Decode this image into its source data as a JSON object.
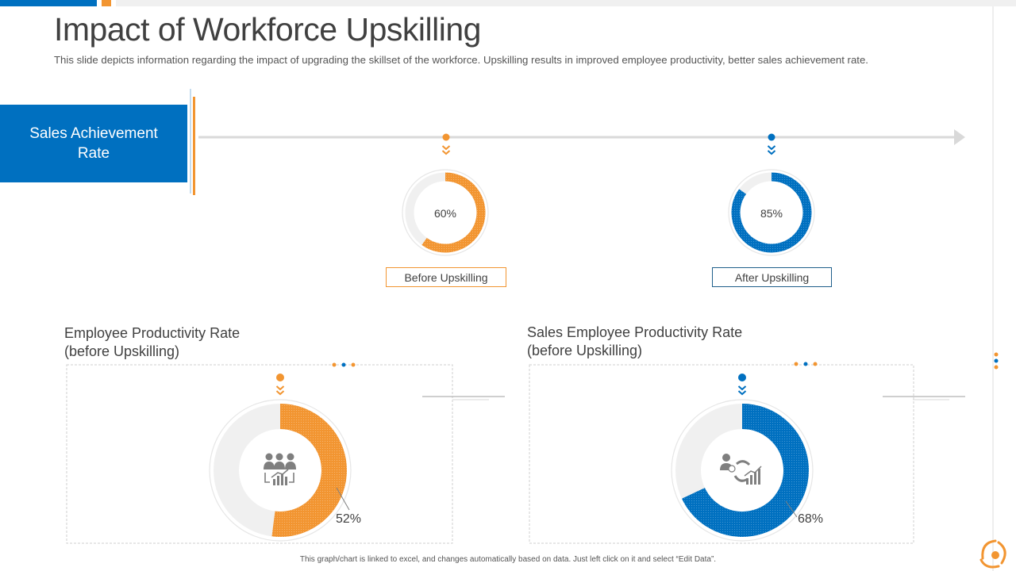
{
  "title": "Impact of Workforce Upskilling",
  "subtitle": "This slide depicts information regarding the impact of upgrading the skillset of the workforce. Upskilling results in improved employee productivity, better sales achievement rate.",
  "side_label": "Sales Achievement Rate",
  "footer": "This graph/chart is linked to excel, and changes automatically  based on data. Just left click on it and select “Edit Data”.",
  "colors": {
    "blue": "#0070c0",
    "orange": "#f29531",
    "track": "#f0f0f0"
  },
  "chart_data": [
    {
      "type": "donut",
      "label": "Before Upskilling",
      "value": 60,
      "value_label": "60%",
      "color": "#f29531"
    },
    {
      "type": "donut",
      "label": "After Upskilling",
      "value": 85,
      "value_label": "85%",
      "color": "#0070c0"
    },
    {
      "type": "donut",
      "title": "Employee Productivity Rate (before Upskilling)",
      "title_lines": [
        "Employee Productivity Rate",
        "(before Upskilling)"
      ],
      "value": 52,
      "value_label": "52%",
      "color": "#f29531",
      "icon": "team-growth-icon"
    },
    {
      "type": "donut",
      "title": "Sales Employee Productivity Rate (before Upskilling)",
      "title_lines": [
        "Sales Employee Productivity Rate",
        "(before Upskilling)"
      ],
      "value": 68,
      "value_label": "68%",
      "color": "#0070c0",
      "icon": "sales-growth-icon"
    }
  ]
}
